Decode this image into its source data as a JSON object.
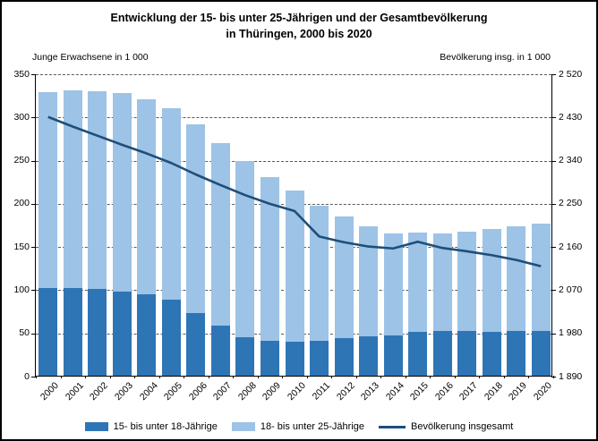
{
  "chart_data": {
    "type": "bar",
    "subtype": "stacked-bar-with-line",
    "title_line1": "Entwicklung der 15- bis unter 25-Jährigen und der Gesamtbevölkerung",
    "title_line2": "in Thüringen, 2000 bis 2020",
    "left_axis": {
      "label": "Junge Erwachsene in 1 000",
      "min": 0,
      "max": 350,
      "step": 50,
      "tick_labels": [
        "350",
        "300",
        "250",
        "200",
        "150",
        "100",
        "50",
        "0"
      ]
    },
    "right_axis": {
      "label": "Bevölkerung insg. in 1 000",
      "min": 1890,
      "max": 2520,
      "step": 90,
      "tick_labels": [
        "2 520",
        "2 430",
        "2 340",
        "2 250",
        "2 160",
        "2 070",
        "1 980",
        "1 890"
      ]
    },
    "categories": [
      "2000",
      "2001",
      "2002",
      "2003",
      "2004",
      "2005",
      "2006",
      "2007",
      "2008",
      "2009",
      "2010",
      "2011",
      "2012",
      "2013",
      "2014",
      "2015",
      "2016",
      "2017",
      "2018",
      "2019",
      "2020"
    ],
    "series": [
      {
        "name": "15- bis unter 18-Jährige",
        "type": "bar",
        "stack": "young",
        "axis": "left",
        "color": "#2e75b6",
        "values": [
          102,
          101,
          100,
          97,
          94,
          88,
          73,
          58,
          45,
          40,
          39,
          40,
          43,
          46,
          47,
          51,
          52,
          52,
          51,
          52,
          52
        ]
      },
      {
        "name": "18- bis unter 25-Jährige",
        "type": "bar",
        "stack": "young",
        "axis": "left",
        "color": "#9dc3e6",
        "values": [
          226,
          229,
          229,
          230,
          226,
          222,
          218,
          211,
          204,
          190,
          175,
          157,
          141,
          127,
          118,
          115,
          113,
          115,
          119,
          121,
          124
        ]
      },
      {
        "name": "Bevölkerung insgesamt",
        "type": "line",
        "axis": "right",
        "color": "#1f4e79",
        "values": [
          2431,
          2411,
          2392,
          2373,
          2355,
          2335,
          2311,
          2289,
          2268,
          2250,
          2235,
          2182,
          2170,
          2161,
          2157,
          2171,
          2158,
          2151,
          2143,
          2133,
          2120
        ]
      }
    ],
    "grid": {
      "horizontal": true,
      "style": "dashed",
      "color": "#595959"
    },
    "legend_position": "bottom"
  }
}
